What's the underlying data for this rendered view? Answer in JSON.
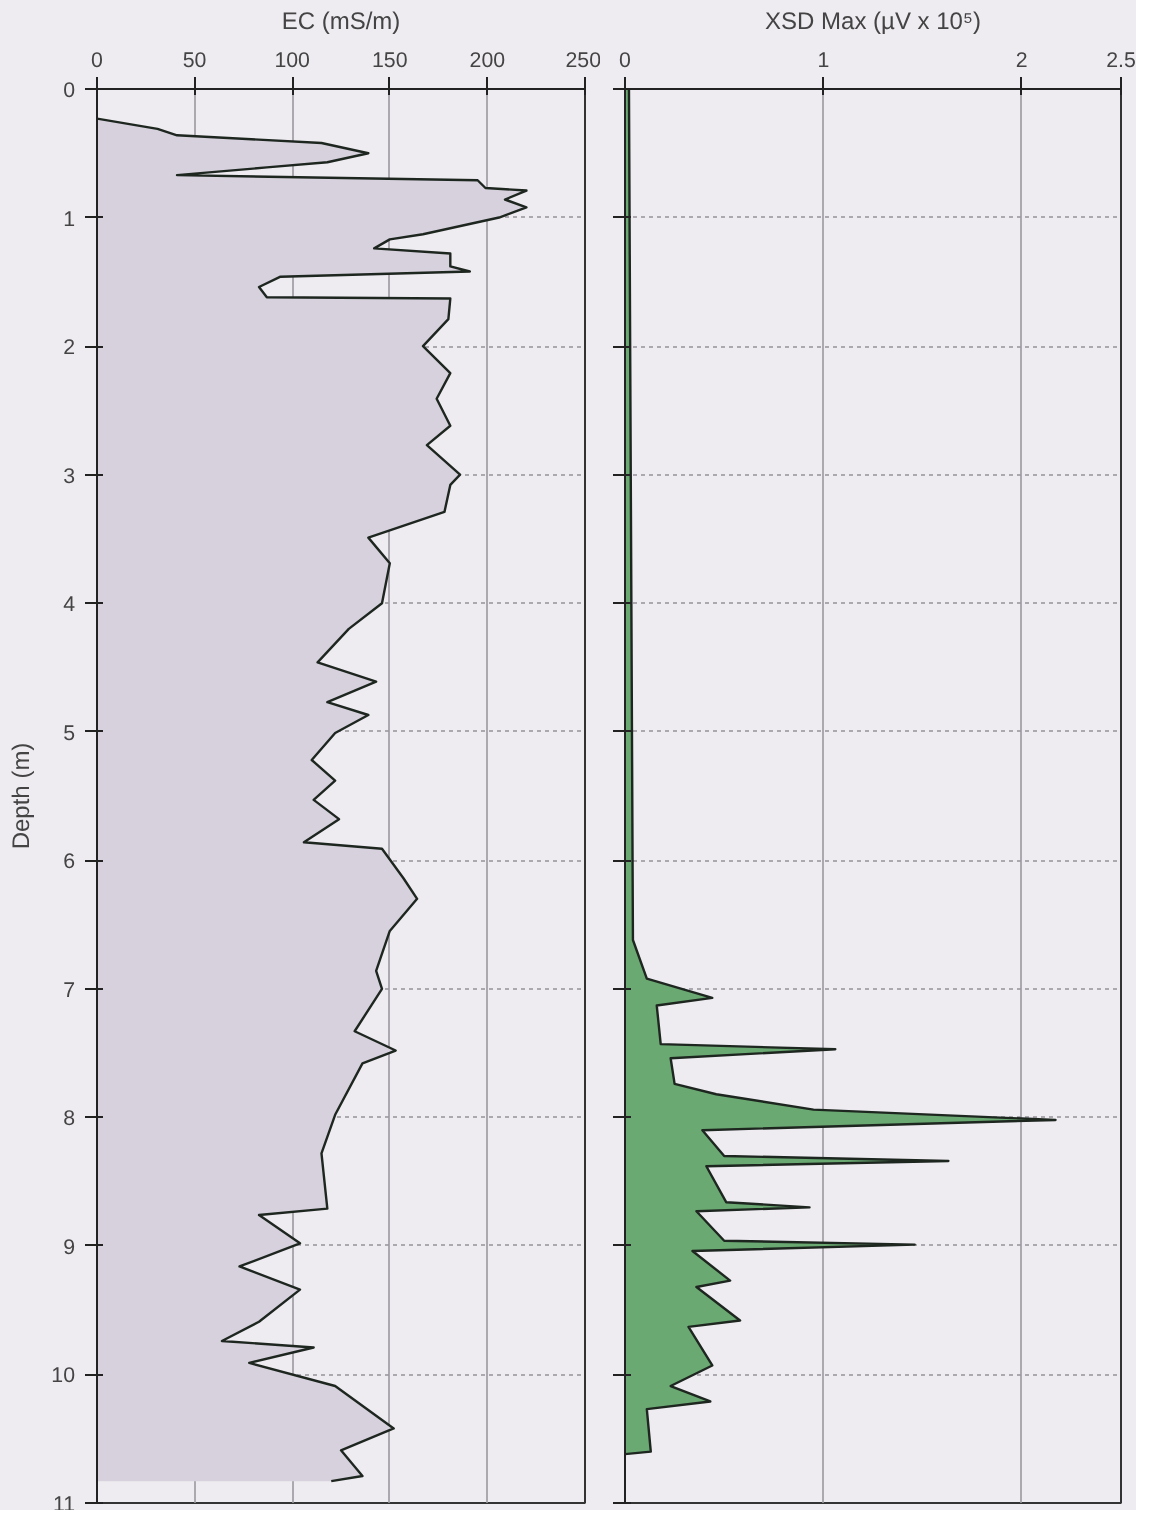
{
  "chart_data": [
    {
      "type": "area",
      "orientation": "horizontal",
      "xlabel": "EC (mS/m)",
      "ylabel": "Depth (m)",
      "xlim": [
        0,
        250
      ],
      "xticks": [
        0,
        50,
        100,
        150,
        200,
        250
      ],
      "ylim": [
        11,
        0
      ],
      "yticks": [
        0,
        1,
        2,
        3,
        4,
        5,
        6,
        7,
        8,
        9,
        10,
        11
      ],
      "grid": true,
      "series": [
        {
          "color": "#d6d1dc",
          "x": [
            0.23,
            0.31,
            0.36,
            0.42,
            0.5,
            0.57,
            0.61,
            0.67,
            0.71,
            0.77,
            0.79,
            0.86,
            0.92,
            1.0,
            1.13,
            1.17,
            1.24,
            1.28,
            1.38,
            1.42,
            1.46,
            1.54,
            1.62,
            1.63,
            1.79,
            2.0,
            2.21,
            2.41,
            2.62,
            2.77,
            3.0,
            3.08,
            3.29,
            3.49,
            3.69,
            4.0,
            4.2,
            4.46,
            4.61,
            4.77,
            4.87,
            5.01,
            5.22,
            5.38,
            5.53,
            5.68,
            5.86,
            5.91,
            6.14,
            6.3,
            6.55,
            6.86,
            7.0,
            7.33,
            7.48,
            7.58,
            7.98,
            8.28,
            8.71,
            8.76,
            8.98,
            9.16,
            9.34,
            9.59,
            9.74,
            9.79,
            9.91,
            10.09,
            10.42,
            10.59,
            10.79,
            10.83
          ],
          "values": [
            0,
            31,
            41,
            115,
            139,
            118,
            87,
            41,
            195,
            199,
            220,
            209,
            220,
            206,
            167,
            150,
            142,
            181,
            181,
            191,
            94,
            83,
            87,
            181,
            180,
            167,
            181,
            174,
            181,
            169,
            186,
            181,
            178,
            139,
            150,
            146,
            129,
            113,
            143,
            118,
            139,
            122,
            110,
            122,
            111,
            124,
            106,
            146,
            157,
            164,
            150,
            143,
            146,
            132,
            153,
            136,
            122,
            115,
            118,
            83,
            104,
            73,
            104,
            83,
            64,
            111,
            78,
            122,
            152,
            125,
            136,
            120
          ]
        }
      ]
    },
    {
      "type": "area",
      "orientation": "horizontal",
      "xlabel": "XSD Max (µV x 10⁵)",
      "xlim": [
        0,
        2.5
      ],
      "xticks": [
        0,
        1,
        2,
        {
          "value": 2.5,
          "label": "2.5"
        }
      ],
      "ylim": [
        11,
        0
      ],
      "yticks": [
        0,
        1,
        2,
        3,
        4,
        5,
        6,
        7,
        8,
        9,
        10,
        11
      ],
      "tick_labels": "x",
      "grid": true,
      "series": [
        {
          "color": "#6aa972",
          "x": [
            0,
            6.62,
            6.92,
            7.07,
            7.13,
            7.43,
            7.47,
            7.54,
            7.74,
            7.82,
            7.94,
            8.02,
            8.1,
            8.3,
            8.34,
            8.38,
            8.66,
            8.7,
            8.73,
            8.96,
            8.99,
            9.04,
            9.27,
            9.32,
            9.58,
            9.63,
            9.93,
            10.09,
            10.21,
            10.27,
            10.6,
            10.62
          ],
          "values": [
            0.02,
            0.04,
            0.11,
            0.44,
            0.16,
            0.18,
            1.06,
            0.23,
            0.25,
            0.46,
            0.95,
            2.17,
            0.39,
            0.5,
            1.63,
            0.41,
            0.51,
            0.93,
            0.36,
            0.5,
            1.46,
            0.34,
            0.53,
            0.36,
            0.58,
            0.32,
            0.44,
            0.23,
            0.43,
            0.11,
            0.13,
            0.0
          ]
        }
      ]
    }
  ]
}
